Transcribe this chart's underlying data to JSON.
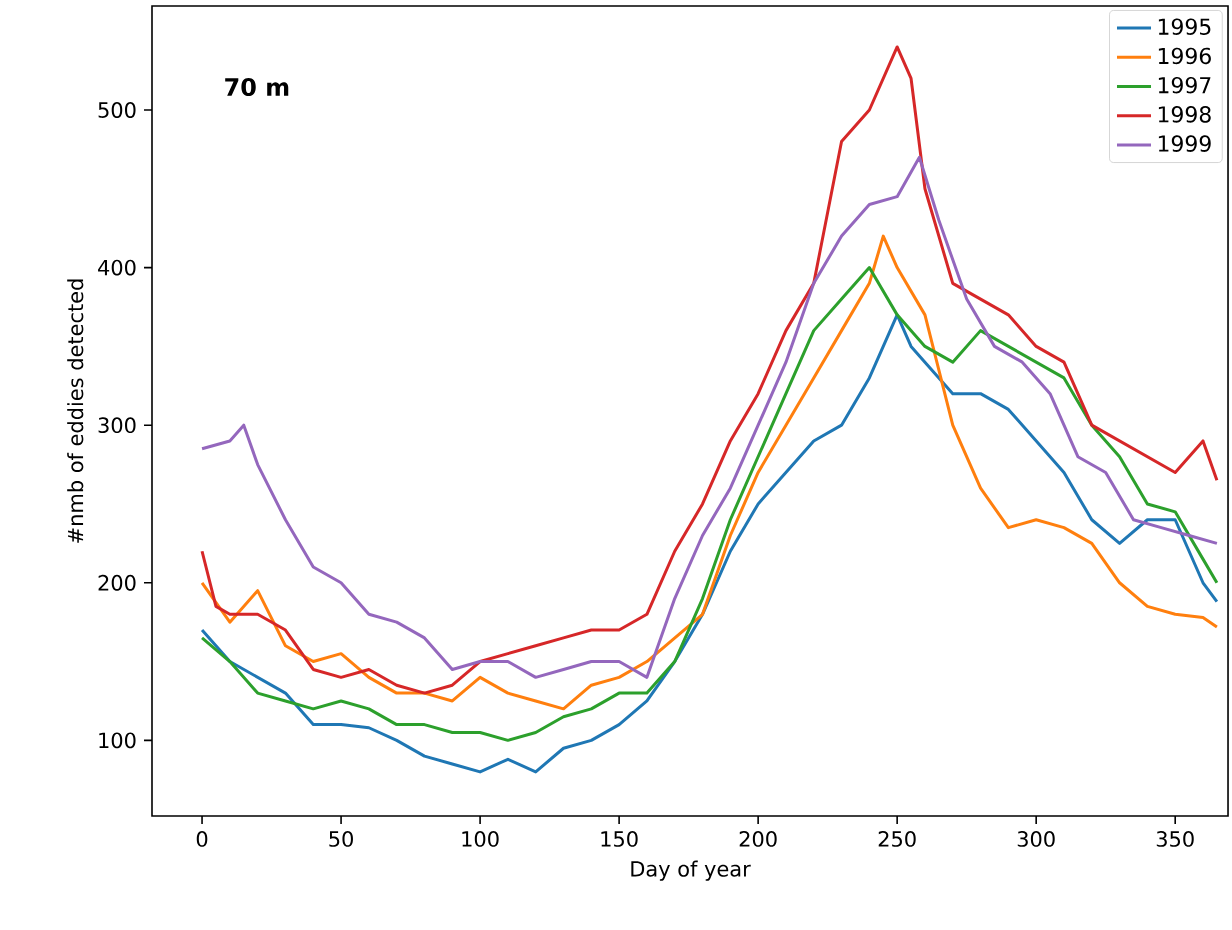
{
  "chart_data": {
    "type": "line",
    "xlabel": "Day of year",
    "ylabel": "#nmb of eddies detected",
    "annotations": [
      "70 m"
    ],
    "xlim": [
      -18,
      369
    ],
    "ylim": [
      52,
      566
    ],
    "xticks": [
      0,
      50,
      100,
      150,
      200,
      250,
      300,
      350
    ],
    "yticks": [
      100,
      200,
      300,
      400,
      500
    ],
    "legend": "top right",
    "grid": false,
    "marker": "none",
    "line_style": "solid",
    "series": [
      {
        "name": "1995",
        "color": "#1f77b4",
        "x": [
          0,
          10,
          20,
          30,
          40,
          50,
          60,
          70,
          80,
          90,
          100,
          110,
          120,
          130,
          140,
          150,
          160,
          170,
          180,
          190,
          200,
          210,
          220,
          230,
          240,
          250,
          255,
          260,
          270,
          280,
          290,
          300,
          310,
          320,
          330,
          340,
          350,
          360,
          365
        ],
        "values": [
          170,
          150,
          140,
          130,
          110,
          110,
          108,
          100,
          90,
          85,
          80,
          88,
          80,
          95,
          100,
          110,
          125,
          150,
          180,
          220,
          250,
          270,
          290,
          300,
          330,
          370,
          350,
          340,
          320,
          320,
          310,
          290,
          270,
          240,
          225,
          240,
          240,
          200,
          188
        ]
      },
      {
        "name": "1996",
        "color": "#ff7f0e",
        "x": [
          0,
          10,
          20,
          30,
          40,
          50,
          60,
          70,
          80,
          90,
          100,
          110,
          120,
          130,
          140,
          150,
          160,
          170,
          180,
          190,
          200,
          210,
          220,
          230,
          240,
          245,
          250,
          260,
          270,
          280,
          290,
          300,
          310,
          320,
          330,
          340,
          350,
          360,
          365
        ],
        "values": [
          200,
          175,
          195,
          160,
          150,
          155,
          140,
          130,
          130,
          125,
          140,
          130,
          125,
          120,
          135,
          140,
          150,
          165,
          180,
          230,
          270,
          300,
          330,
          360,
          390,
          420,
          400,
          370,
          300,
          260,
          235,
          240,
          235,
          225,
          200,
          185,
          180,
          178,
          172
        ]
      },
      {
        "name": "1997",
        "color": "#2ca02c",
        "x": [
          0,
          10,
          20,
          30,
          40,
          50,
          60,
          70,
          80,
          90,
          100,
          110,
          120,
          130,
          140,
          150,
          160,
          170,
          180,
          190,
          200,
          210,
          220,
          230,
          240,
          250,
          260,
          270,
          280,
          290,
          300,
          310,
          320,
          330,
          340,
          350,
          360,
          365
        ],
        "values": [
          165,
          150,
          130,
          125,
          120,
          125,
          120,
          110,
          110,
          105,
          105,
          100,
          105,
          115,
          120,
          130,
          130,
          150,
          190,
          240,
          280,
          320,
          360,
          380,
          400,
          370,
          350,
          340,
          360,
          350,
          340,
          330,
          300,
          280,
          250,
          245,
          215,
          200
        ]
      },
      {
        "name": "1998",
        "color": "#d62728",
        "x": [
          0,
          5,
          10,
          20,
          30,
          40,
          50,
          60,
          70,
          80,
          90,
          100,
          110,
          120,
          130,
          140,
          150,
          160,
          170,
          180,
          190,
          200,
          210,
          220,
          230,
          240,
          250,
          255,
          260,
          270,
          280,
          290,
          300,
          310,
          320,
          330,
          340,
          350,
          360,
          365
        ],
        "values": [
          220,
          185,
          180,
          180,
          170,
          145,
          140,
          145,
          135,
          130,
          135,
          150,
          155,
          160,
          165,
          170,
          170,
          180,
          220,
          250,
          290,
          320,
          360,
          390,
          480,
          500,
          540,
          520,
          450,
          390,
          380,
          370,
          350,
          340,
          300,
          290,
          280,
          270,
          290,
          265
        ]
      },
      {
        "name": "1999",
        "color": "#9467bd",
        "x": [
          0,
          10,
          15,
          20,
          30,
          40,
          50,
          60,
          70,
          80,
          90,
          100,
          110,
          120,
          130,
          140,
          150,
          160,
          170,
          180,
          190,
          200,
          210,
          220,
          230,
          240,
          250,
          258,
          265,
          275,
          285,
          295,
          305,
          315,
          325,
          335,
          345,
          355,
          365
        ],
        "values": [
          285,
          290,
          300,
          275,
          240,
          210,
          200,
          180,
          175,
          165,
          145,
          150,
          150,
          140,
          145,
          150,
          150,
          140,
          190,
          230,
          260,
          300,
          340,
          390,
          420,
          440,
          445,
          470,
          430,
          380,
          350,
          340,
          320,
          280,
          270,
          240,
          235,
          230,
          225
        ]
      }
    ]
  }
}
